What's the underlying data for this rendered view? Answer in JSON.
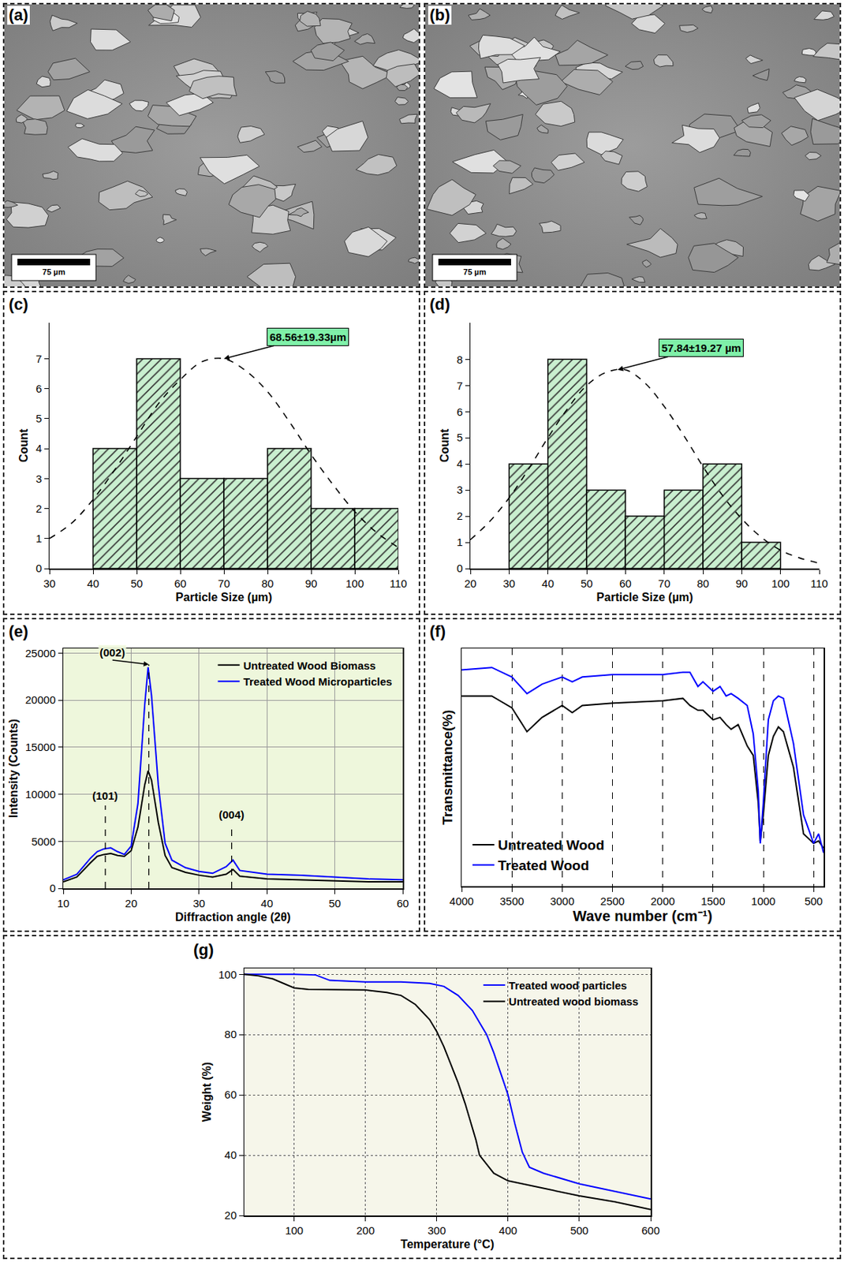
{
  "chart_data": [
    {
      "type": "image",
      "panel_label": "(a)",
      "scale_bar": "75 µm"
    },
    {
      "type": "image",
      "panel_label": "(b)",
      "scale_bar": "75 µm"
    },
    {
      "type": "histogram",
      "panel_label": "(c)",
      "x_label": "Particle Size (µm)",
      "y_label": "Count",
      "bins": [
        40,
        50,
        60,
        70,
        80,
        90,
        100,
        110
      ],
      "counts": [
        4,
        7,
        3,
        3,
        4,
        2,
        2
      ],
      "color": "#c9efcf",
      "series": [
        {
          "type": "line",
          "line_style": "dashed",
          "color": "#000000",
          "x": [
            30,
            35,
            40,
            45,
            50,
            55,
            60,
            65,
            70,
            75,
            80,
            85,
            90,
            95,
            100,
            105,
            110
          ],
          "values": [
            1.0,
            1.5,
            2.3,
            3.3,
            4.4,
            5.5,
            6.3,
            6.9,
            7.0,
            6.6,
            5.9,
            4.9,
            3.8,
            2.8,
            1.9,
            1.2,
            0.7
          ]
        }
      ],
      "annotations": [
        {
          "text": "68.56±19.33µm",
          "x": 70,
          "y": 7
        }
      ],
      "xlim": [
        30,
        110
      ],
      "xticks": [
        30,
        40,
        50,
        60,
        70,
        80,
        90,
        100,
        110
      ],
      "ylim": [
        0,
        8.2
      ],
      "yticks": [
        0,
        1,
        2,
        3,
        4,
        5,
        6,
        7
      ]
    },
    {
      "type": "histogram",
      "panel_label": "(d)",
      "x_label": "Particle Size (µm)",
      "y_label": "Count",
      "bins": [
        30,
        40,
        50,
        60,
        70,
        80,
        90,
        100
      ],
      "counts": [
        4,
        8,
        3,
        2,
        3,
        4,
        1
      ],
      "color": "#c9efcf",
      "series": [
        {
          "type": "line",
          "line_style": "dashed",
          "color": "#000000",
          "x": [
            20,
            25,
            30,
            35,
            40,
            45,
            50,
            55,
            60,
            65,
            70,
            75,
            80,
            85,
            90,
            95,
            100,
            105,
            110
          ],
          "values": [
            1.1,
            1.8,
            2.7,
            3.8,
            5.0,
            6.1,
            7.0,
            7.5,
            7.6,
            7.1,
            6.2,
            5.1,
            3.9,
            2.8,
            1.9,
            1.2,
            0.7,
            0.4,
            0.2
          ]
        }
      ],
      "annotations": [
        {
          "text": "57.84±19.27 µm",
          "x": 58,
          "y": 7.6
        }
      ],
      "xlim": [
        20,
        110
      ],
      "xticks": [
        20,
        30,
        40,
        50,
        60,
        70,
        80,
        90,
        100,
        110
      ],
      "ylim": [
        0,
        9.4
      ],
      "yticks": [
        0,
        1,
        2,
        3,
        4,
        5,
        6,
        7,
        8
      ]
    },
    {
      "type": "line",
      "panel_label": "(e)",
      "x_label": "Diffraction angle (2θ)",
      "y_label": "Intensity (Counts)",
      "legend": "top right",
      "grid": true,
      "series": [
        {
          "name": "Untreated Wood Biomass",
          "color": "#000000",
          "x": [
            10,
            12,
            14,
            15,
            16,
            17,
            18,
            19,
            20,
            21,
            22,
            22.5,
            23,
            24,
            25,
            26,
            28,
            30,
            32,
            34,
            35,
            36,
            40,
            45,
            50,
            55,
            60
          ],
          "values": [
            700,
            1200,
            2700,
            3400,
            3600,
            3700,
            3500,
            3400,
            4000,
            6500,
            11000,
            12500,
            11500,
            7000,
            3500,
            2200,
            1700,
            1400,
            1200,
            1500,
            2000,
            1300,
            1000,
            900,
            800,
            700,
            700
          ]
        },
        {
          "name": "Treated Wood Microparticles",
          "color": "#0000ff",
          "x": [
            10,
            12,
            14,
            15,
            16,
            17,
            18,
            19,
            20,
            21,
            22,
            22.5,
            23,
            24,
            25,
            26,
            28,
            30,
            32,
            34,
            35,
            36,
            40,
            45,
            50,
            55,
            60
          ],
          "values": [
            900,
            1500,
            3200,
            3900,
            4200,
            4300,
            3900,
            3600,
            4500,
            9000,
            19500,
            23500,
            20500,
            11000,
            4800,
            3000,
            2200,
            1800,
            1600,
            2300,
            3000,
            1900,
            1500,
            1400,
            1200,
            1000,
            900
          ]
        }
      ],
      "peaks": [
        {
          "label": "(101)",
          "x": 16.2,
          "y": 8800
        },
        {
          "label": "(002)",
          "x": 22.6,
          "y": 23800
        },
        {
          "label": "(004)",
          "x": 34.8,
          "y": 6800
        }
      ],
      "xlim": [
        10,
        60
      ],
      "xticks": [
        10,
        20,
        30,
        40,
        50,
        60
      ],
      "ylim": [
        0,
        25500
      ],
      "yticks": [
        0,
        5000,
        10000,
        15000,
        20000,
        25000
      ]
    },
    {
      "type": "line",
      "panel_label": "(f)",
      "x_label": "Wave number (cm⁻¹)",
      "y_label": "Transmittance(%)",
      "legend": "bottom left",
      "grid": true,
      "tick_labels": "x",
      "series": [
        {
          "name": "Untreated Wood",
          "color": "#000000",
          "x": [
            4000,
            3700,
            3500,
            3350,
            3200,
            3000,
            2900,
            2800,
            2500,
            2000,
            1800,
            1730,
            1650,
            1600,
            1500,
            1430,
            1370,
            1320,
            1250,
            1160,
            1100,
            1050,
            1030,
            1000,
            950,
            900,
            850,
            800,
            700,
            600,
            500,
            450,
            400
          ],
          "values": [
            80,
            80,
            75,
            65,
            71,
            76,
            73,
            76,
            77,
            78,
            79,
            76,
            74,
            74,
            70,
            71,
            68,
            66,
            68,
            59,
            55,
            35,
            19,
            30,
            55,
            63,
            67,
            65,
            50,
            22,
            18,
            19,
            16
          ]
        },
        {
          "name": "Treated Wood",
          "color": "#0000ff",
          "x": [
            4000,
            3700,
            3500,
            3350,
            3200,
            3000,
            2900,
            2800,
            2500,
            2000,
            1800,
            1730,
            1650,
            1600,
            1500,
            1430,
            1370,
            1320,
            1250,
            1160,
            1100,
            1050,
            1030,
            1000,
            950,
            900,
            850,
            800,
            700,
            600,
            500,
            450,
            400
          ],
          "values": [
            91,
            92,
            88,
            81,
            85,
            88,
            86,
            88,
            89,
            89,
            90,
            90,
            84,
            86,
            82,
            84,
            80,
            81,
            79,
            76,
            64,
            40,
            18,
            35,
            70,
            78,
            80,
            79,
            60,
            30,
            18,
            22,
            14
          ]
        }
      ],
      "xlim": [
        4000,
        400
      ],
      "xticks": [
        4000,
        3500,
        3000,
        2500,
        2000,
        1500,
        1000,
        500
      ],
      "ylim": [
        0,
        100
      ]
    },
    {
      "type": "line",
      "panel_label": "(g)",
      "x_label": "Temperature (°C)",
      "y_label": "Weight (%)",
      "legend": "top right",
      "grid": true,
      "series": [
        {
          "name": "Treated wood particles",
          "color": "#0000ff",
          "x": [
            30,
            50,
            100,
            130,
            150,
            200,
            250,
            290,
            310,
            330,
            350,
            370,
            380,
            390,
            400,
            410,
            420,
            430,
            450,
            500,
            550,
            600
          ],
          "values": [
            100,
            100,
            100,
            99.8,
            98,
            97.5,
            97.5,
            97,
            96,
            93,
            88,
            80,
            74,
            67,
            60,
            50,
            41,
            36,
            34,
            30.5,
            28,
            25.5
          ]
        },
        {
          "name": "Untreated wood biomass",
          "color": "#000000",
          "x": [
            30,
            50,
            70,
            90,
            100,
            120,
            200,
            230,
            250,
            270,
            290,
            300,
            310,
            320,
            330,
            340,
            350,
            355,
            360,
            370,
            380,
            400,
            450,
            500,
            550,
            600
          ],
          "values": [
            100,
            99.5,
            98.5,
            96.5,
            95.5,
            95,
            94.8,
            94,
            93,
            90,
            85,
            81,
            76,
            70,
            64,
            57,
            49,
            45,
            40,
            37,
            34,
            31.5,
            29,
            26.5,
            24.5,
            22
          ]
        }
      ],
      "xlim": [
        30,
        600
      ],
      "xticks": [
        100,
        200,
        300,
        400,
        500,
        600
      ],
      "ylim": [
        20,
        102
      ],
      "yticks": [
        20,
        40,
        60,
        80,
        100
      ]
    }
  ]
}
